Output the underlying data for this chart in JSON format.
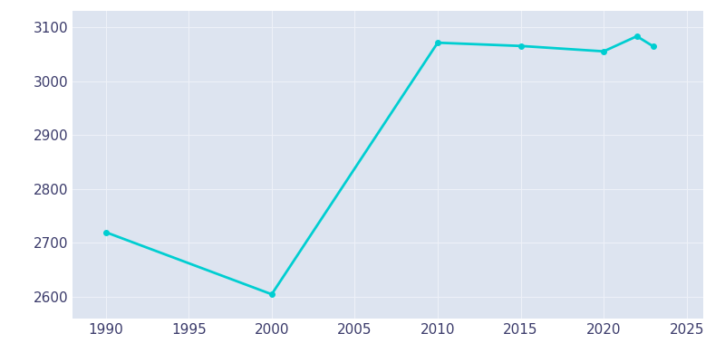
{
  "years": [
    1990,
    2000,
    2010,
    2015,
    2020,
    2022,
    2023
  ],
  "population": [
    2720,
    2605,
    3071,
    3065,
    3055,
    3083,
    3064
  ],
  "line_color": "#00CED1",
  "marker": "o",
  "marker_size": 4,
  "plot_bg_color": "#dde4f0",
  "fig_bg_color": "#ffffff",
  "grid_color": "#eef1f8",
  "xlim": [
    1988,
    2026
  ],
  "ylim": [
    2560,
    3130
  ],
  "xticks": [
    1990,
    1995,
    2000,
    2005,
    2010,
    2015,
    2020,
    2025
  ],
  "yticks": [
    2600,
    2700,
    2800,
    2900,
    3000,
    3100
  ],
  "tick_label_color": "#3a3a6a",
  "tick_fontsize": 11,
  "linewidth": 2.0
}
